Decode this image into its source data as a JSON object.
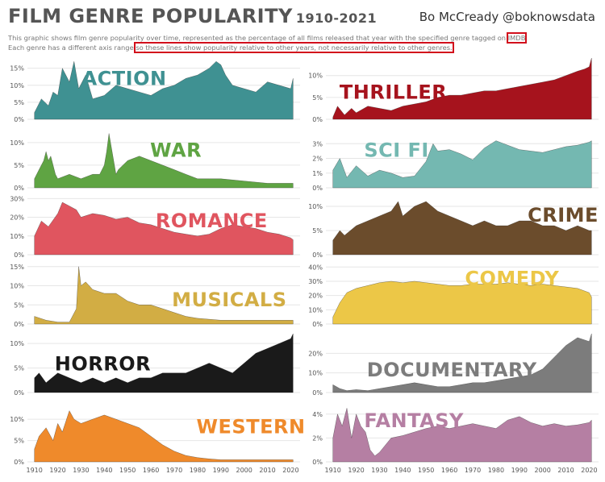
{
  "header": {
    "title": "FILM GENRE POPULARITY",
    "years": "1910-2021",
    "author": "Bo McCready",
    "handle": "@boknowsdata",
    "subtitle_1a": "This graphic shows film genre popularity over time, represented as the percentage of all films released that year with the specified genre tagged on ",
    "subtitle_1b": "IMDB",
    "subtitle_1c": ".",
    "subtitle_2a": "Each genre has a different axis range ",
    "subtitle_2b": "so these lines show popularity relative to other years, not necessarily relative to other genres."
  },
  "chart_data": {
    "type": "area",
    "x_ticks": [
      "1910",
      "1920",
      "1930",
      "1940",
      "1950",
      "1960",
      "1970",
      "1980",
      "1990",
      "2000",
      "2010",
      "2020"
    ],
    "xlim": [
      1907,
      2024
    ],
    "panels": [
      {
        "genre": "ACTION",
        "color": "#3f9192",
        "ylim": [
          0,
          18
        ],
        "yticks": [
          "0%",
          "5%",
          "10%",
          "15%"
        ],
        "x": [
          1910,
          1913,
          1916,
          1918,
          1920,
          1922,
          1925,
          1927,
          1929,
          1932,
          1935,
          1940,
          1945,
          1950,
          1955,
          1960,
          1965,
          1970,
          1975,
          1980,
          1985,
          1988,
          1990,
          1992,
          1995,
          2000,
          2005,
          2010,
          2015,
          2020,
          2021
        ],
        "values": [
          2,
          6,
          4,
          8,
          7,
          15,
          11,
          17,
          9,
          13,
          6,
          7,
          10,
          9,
          8,
          7,
          9,
          10,
          12,
          13,
          15,
          17,
          16,
          13,
          10,
          9,
          8,
          11,
          10,
          9,
          12
        ]
      },
      {
        "genre": "THRILLER",
        "color": "#a6131d",
        "ylim": [
          0,
          14
        ],
        "yticks": [
          "0%",
          "5%",
          "10%"
        ],
        "x": [
          1910,
          1912,
          1915,
          1918,
          1920,
          1925,
          1930,
          1935,
          1940,
          1945,
          1950,
          1955,
          1960,
          1965,
          1970,
          1975,
          1980,
          1985,
          1990,
          1995,
          2000,
          2005,
          2010,
          2015,
          2018,
          2020,
          2021
        ],
        "values": [
          0.5,
          3,
          1,
          2.5,
          1.5,
          3,
          2.5,
          2,
          3,
          3.5,
          4,
          5,
          5.5,
          5.5,
          6,
          6.5,
          6.5,
          7,
          7.5,
          8,
          8.5,
          9,
          10,
          11,
          11.5,
          12,
          14
        ]
      },
      {
        "genre": "WAR",
        "color": "#5fa443",
        "ylim": [
          0,
          13
        ],
        "yticks": [
          "0%",
          "5%",
          "10%"
        ],
        "x": [
          1910,
          1912,
          1914,
          1915,
          1916,
          1917,
          1918,
          1919,
          1920,
          1925,
          1930,
          1935,
          1938,
          1940,
          1941,
          1942,
          1943,
          1944,
          1945,
          1946,
          1948,
          1950,
          1955,
          1960,
          1965,
          1970,
          1975,
          1980,
          1985,
          1990,
          2000,
          2010,
          2021
        ],
        "values": [
          2,
          4,
          6,
          8,
          6,
          7,
          5,
          3,
          2,
          3,
          2,
          3,
          3,
          5,
          8,
          12,
          9,
          6,
          3,
          4,
          5,
          6,
          7,
          6,
          5,
          4,
          3,
          2,
          2,
          2,
          1.5,
          1,
          1
        ]
      },
      {
        "genre": "SCI FI",
        "color": "#74b8b1",
        "ylim": [
          0,
          4
        ],
        "yticks": [
          "0%",
          "1%",
          "2%",
          "3%"
        ],
        "x": [
          1910,
          1913,
          1916,
          1920,
          1925,
          1930,
          1935,
          1940,
          1945,
          1950,
          1953,
          1955,
          1960,
          1965,
          1970,
          1975,
          1980,
          1985,
          1990,
          1995,
          2000,
          2005,
          2010,
          2015,
          2020,
          2021
        ],
        "values": [
          1.2,
          2,
          0.7,
          1.5,
          0.8,
          1.2,
          1,
          0.7,
          0.8,
          1.8,
          3,
          2.5,
          2.6,
          2.3,
          1.9,
          2.7,
          3.2,
          2.9,
          2.6,
          2.5,
          2.4,
          2.6,
          2.8,
          2.9,
          3.1,
          3.2
        ]
      },
      {
        "genre": "ROMANCE",
        "color": "#e0555f",
        "ylim": [
          0,
          31
        ],
        "yticks": [
          "0%",
          "10%",
          "20%",
          "30%"
        ],
        "x": [
          1910,
          1913,
          1916,
          1920,
          1922,
          1925,
          1928,
          1930,
          1935,
          1940,
          1945,
          1950,
          1955,
          1960,
          1965,
          1970,
          1975,
          1980,
          1985,
          1990,
          1995,
          2000,
          2005,
          2010,
          2015,
          2020,
          2021
        ],
        "values": [
          10,
          18,
          15,
          22,
          28,
          26,
          24,
          20,
          22,
          21,
          19,
          20,
          17,
          16,
          14,
          12,
          11,
          10,
          11,
          14,
          16,
          15,
          14,
          12,
          11,
          9,
          8
        ]
      },
      {
        "genre": "CRIME",
        "color": "#6b4c2c",
        "ylim": [
          0,
          12
        ],
        "yticks": [
          "0%",
          "5%",
          "10%"
        ],
        "x": [
          1910,
          1913,
          1915,
          1920,
          1925,
          1930,
          1935,
          1938,
          1940,
          1945,
          1950,
          1955,
          1960,
          1965,
          1970,
          1975,
          1980,
          1985,
          1990,
          1995,
          2000,
          2005,
          2010,
          2015,
          2020,
          2021
        ],
        "values": [
          3,
          5,
          4,
          6,
          7,
          8,
          9,
          11,
          8,
          10,
          11,
          9,
          8,
          7,
          6,
          7,
          6,
          6,
          7,
          7,
          6,
          6,
          5,
          6,
          5,
          5
        ]
      },
      {
        "genre": "MUSICALS",
        "color": "#d2ad44",
        "ylim": [
          0,
          16
        ],
        "yticks": [
          "0%",
          "5%",
          "10%",
          "15%"
        ],
        "x": [
          1910,
          1915,
          1920,
          1925,
          1928,
          1929,
          1930,
          1932,
          1935,
          1940,
          1945,
          1950,
          1955,
          1960,
          1965,
          1970,
          1975,
          1980,
          1990,
          2000,
          2010,
          2021
        ],
        "values": [
          2,
          1,
          0.5,
          0.5,
          4,
          15,
          10,
          11,
          9,
          8,
          8,
          6,
          5,
          5,
          4,
          3,
          2,
          1.5,
          1,
          1,
          1,
          1
        ]
      },
      {
        "genre": "COMEDY",
        "color": "#ecc747",
        "ylim": [
          0,
          43
        ],
        "yticks": [
          "0%",
          "10%",
          "20%",
          "30%",
          "40%"
        ],
        "x": [
          1910,
          1913,
          1916,
          1920,
          1925,
          1930,
          1935,
          1940,
          1945,
          1950,
          1955,
          1960,
          1965,
          1970,
          1975,
          1980,
          1985,
          1990,
          1995,
          2000,
          2005,
          2010,
          2015,
          2020,
          2021
        ],
        "values": [
          5,
          15,
          22,
          25,
          27,
          29,
          30,
          29,
          30,
          29,
          28,
          27,
          27,
          28,
          28,
          28,
          29,
          28,
          27,
          28,
          27,
          26,
          25,
          22,
          19
        ]
      },
      {
        "genre": "HORROR",
        "color": "#1a1a1a",
        "ylim": [
          0,
          12
        ],
        "yticks": [
          "0%",
          "5%",
          "10%"
        ],
        "x": [
          1910,
          1912,
          1915,
          1920,
          1925,
          1930,
          1935,
          1940,
          1945,
          1950,
          1955,
          1960,
          1965,
          1970,
          1975,
          1980,
          1985,
          1990,
          1995,
          2000,
          2005,
          2010,
          2015,
          2020,
          2021
        ],
        "values": [
          3,
          4,
          2,
          4,
          3,
          2,
          3,
          2,
          3,
          2,
          3,
          3,
          4,
          4,
          4,
          5,
          6,
          5,
          4,
          6,
          8,
          9,
          10,
          11,
          12
        ]
      },
      {
        "genre": "DOCUMENTARY",
        "color": "#7c7c7c",
        "ylim": [
          0,
          30
        ],
        "yticks": [
          "0%",
          "10%",
          "20%"
        ],
        "x": [
          1910,
          1913,
          1916,
          1920,
          1925,
          1930,
          1935,
          1940,
          1945,
          1950,
          1955,
          1960,
          1965,
          1970,
          1975,
          1980,
          1985,
          1990,
          1995,
          2000,
          2005,
          2010,
          2015,
          2020,
          2021
        ],
        "values": [
          4,
          2,
          1,
          1.5,
          1,
          2,
          3,
          4,
          5,
          4,
          3,
          3,
          4,
          5,
          5,
          6,
          7,
          8,
          9,
          12,
          18,
          24,
          28,
          26,
          30
        ]
      },
      {
        "genre": "WESTERN",
        "color": "#ef8a2b",
        "ylim": [
          0,
          14
        ],
        "yticks": [
          "0%",
          "5%",
          "10%"
        ],
        "x": [
          1910,
          1912,
          1915,
          1918,
          1920,
          1922,
          1925,
          1927,
          1930,
          1935,
          1940,
          1945,
          1950,
          1955,
          1960,
          1965,
          1970,
          1975,
          1980,
          1985,
          1990,
          2000,
          2010,
          2021
        ],
        "values": [
          3,
          6,
          8,
          5,
          9,
          7,
          12,
          10,
          9,
          10,
          11,
          10,
          9,
          8,
          6,
          4,
          2.5,
          1.5,
          1,
          0.7,
          0.5,
          0.5,
          0.5,
          0.5
        ]
      },
      {
        "genre": "FANTASY",
        "color": "#b57fa3",
        "ylim": [
          0,
          5
        ],
        "yticks": [
          "0%",
          "2%",
          "4%"
        ],
        "x": [
          1910,
          1912,
          1914,
          1916,
          1918,
          1920,
          1922,
          1924,
          1926,
          1928,
          1930,
          1935,
          1940,
          1945,
          1950,
          1955,
          1960,
          1965,
          1970,
          1975,
          1980,
          1985,
          1990,
          1995,
          2000,
          2005,
          2010,
          2015,
          2020,
          2021
        ],
        "values": [
          2,
          4,
          3,
          4.5,
          2,
          4,
          3,
          2.5,
          1,
          0.5,
          0.8,
          2,
          2.2,
          2.5,
          2.8,
          3,
          2.8,
          3,
          3.2,
          3,
          2.8,
          3.5,
          3.8,
          3.3,
          3,
          3.2,
          3,
          3.1,
          3.3,
          3.5
        ]
      }
    ]
  }
}
